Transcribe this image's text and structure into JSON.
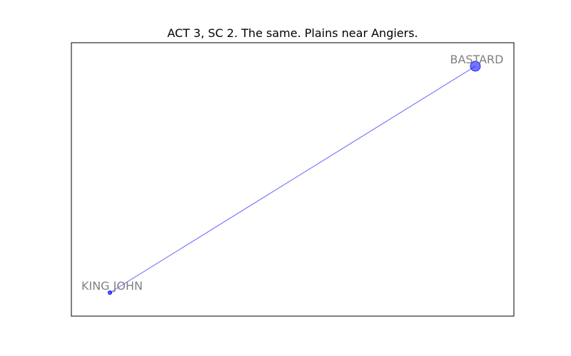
{
  "title": "ACT 3, SC 2. The same. Plains near Angiers.",
  "colors": {
    "node": "#0000ff",
    "edge": "#0000ff",
    "label": "#808080",
    "frame": "#000000"
  },
  "graph": {
    "nodes": [
      {
        "id": "king-john",
        "label": "KING JOHN",
        "size": "small"
      },
      {
        "id": "bastard",
        "label": "BASTARD",
        "size": "large"
      }
    ],
    "edges": [
      {
        "source": "king-john",
        "target": "bastard"
      }
    ]
  }
}
